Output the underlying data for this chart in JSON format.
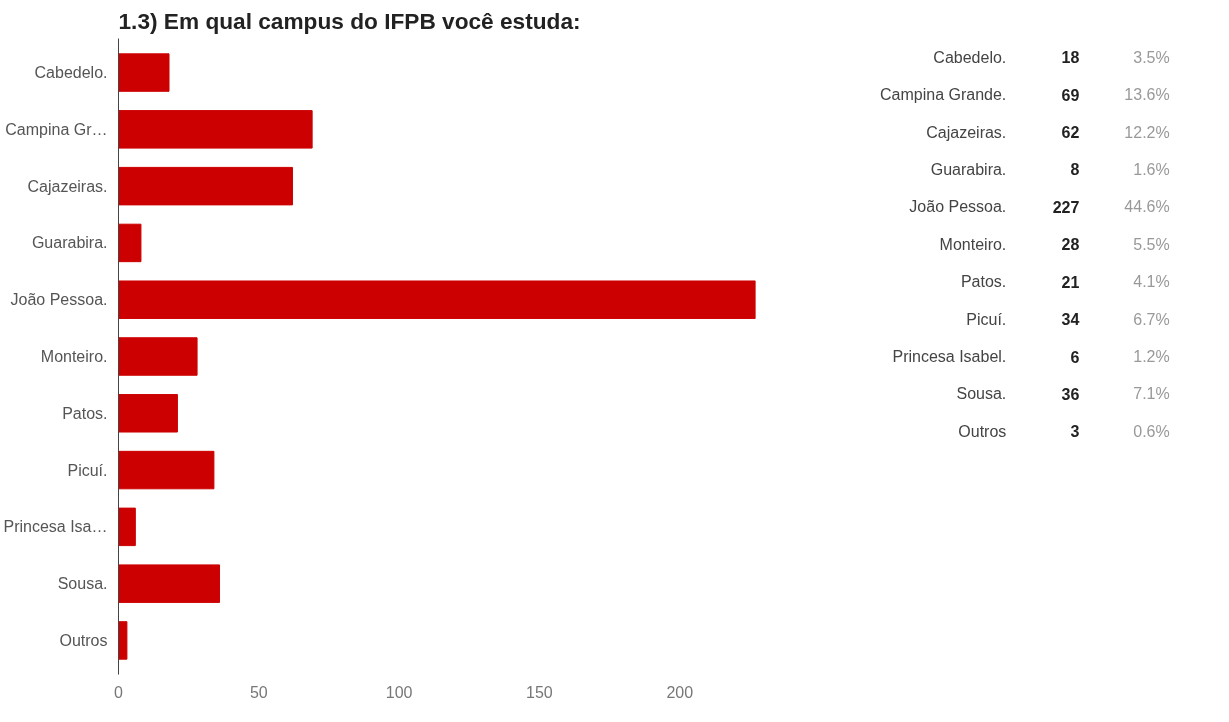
{
  "chart_data": [
    {
      "type": "bar",
      "orientation": "horizontal",
      "title": "1.3) Em qual campus do IFPB você estuda:",
      "categories": [
        "Cabedelo.",
        "Campina Gr…",
        "Cajazeiras.",
        "Guarabira.",
        "João Pessoa.",
        "Monteiro.",
        "Patos.",
        "Picuí.",
        "Princesa Isa…",
        "Sousa.",
        "Outros"
      ],
      "values": [
        18,
        69,
        62,
        8,
        227,
        28,
        21,
        34,
        6,
        36,
        3
      ],
      "color": "#cc0000",
      "xlim": [
        0,
        227
      ],
      "xticks": [
        0,
        50,
        100,
        150,
        200
      ],
      "grid": false
    },
    {
      "type": "other",
      "categories": [
        "Cabedelo.",
        "Campina Grande.",
        "Cajazeiras.",
        "Guarabira.",
        "João Pessoa.",
        "Monteiro.",
        "Patos.",
        "Picuí.",
        "Princesa Isabel.",
        "Sousa.",
        "Outros"
      ],
      "values": [
        18,
        69,
        62,
        8,
        227,
        28,
        21,
        34,
        6,
        36,
        3
      ],
      "data_labels": true,
      "annotations": [
        "3.5%",
        "13.6%",
        "12.2%",
        "1.6%",
        "44.6%",
        "5.5%",
        "4.1%",
        "6.7%",
        "1.2%",
        "7.1%",
        "0.6%"
      ]
    }
  ]
}
